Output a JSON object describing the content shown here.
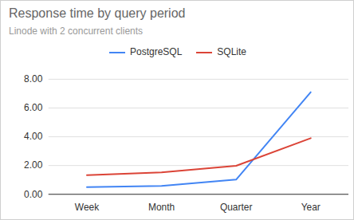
{
  "chart_data": {
    "type": "line",
    "title": "Response time by query period",
    "subtitle": "Linode with 2 concurrent clients",
    "categories": [
      "Week",
      "Month",
      "Quarter",
      "Year"
    ],
    "series": [
      {
        "name": "PostgreSQL",
        "color": "#4285f4",
        "values": [
          0.5,
          0.58,
          1.02,
          7.1
        ]
      },
      {
        "name": "SQLite",
        "color": "#db4437",
        "values": [
          1.33,
          1.52,
          1.98,
          3.9
        ]
      }
    ],
    "ylim": [
      0,
      8
    ],
    "yticks": [
      {
        "value": 0,
        "label": "0.00"
      },
      {
        "value": 2,
        "label": "2.00"
      },
      {
        "value": 4,
        "label": "4.00"
      },
      {
        "value": 6,
        "label": "6.00"
      },
      {
        "value": 8,
        "label": "8.00"
      }
    ],
    "grid": true,
    "legend": "top"
  }
}
